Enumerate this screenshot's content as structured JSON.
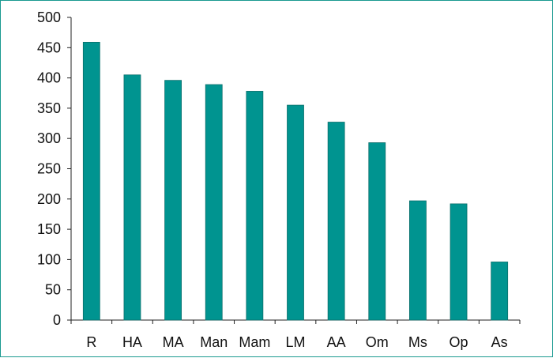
{
  "colors": {
    "bar": "#009490",
    "bar_edge": "#0b6f6b",
    "axis": "#222222",
    "frame": "#1a9a90"
  },
  "chart_data": {
    "type": "bar",
    "title": "",
    "xlabel": "",
    "ylabel": "",
    "categories": [
      "R",
      "HA",
      "MA",
      "Man",
      "Mam",
      "LM",
      "AA",
      "Om",
      "Ms",
      "Op",
      "As"
    ],
    "values": [
      459,
      405,
      396,
      389,
      378,
      355,
      327,
      293,
      197,
      192,
      96
    ],
    "ylim": [
      0,
      500
    ],
    "yticks": [
      "0",
      "50",
      "100",
      "150",
      "200",
      "250",
      "300",
      "350",
      "400",
      "450",
      "500"
    ],
    "grid": false,
    "legend": "none"
  }
}
